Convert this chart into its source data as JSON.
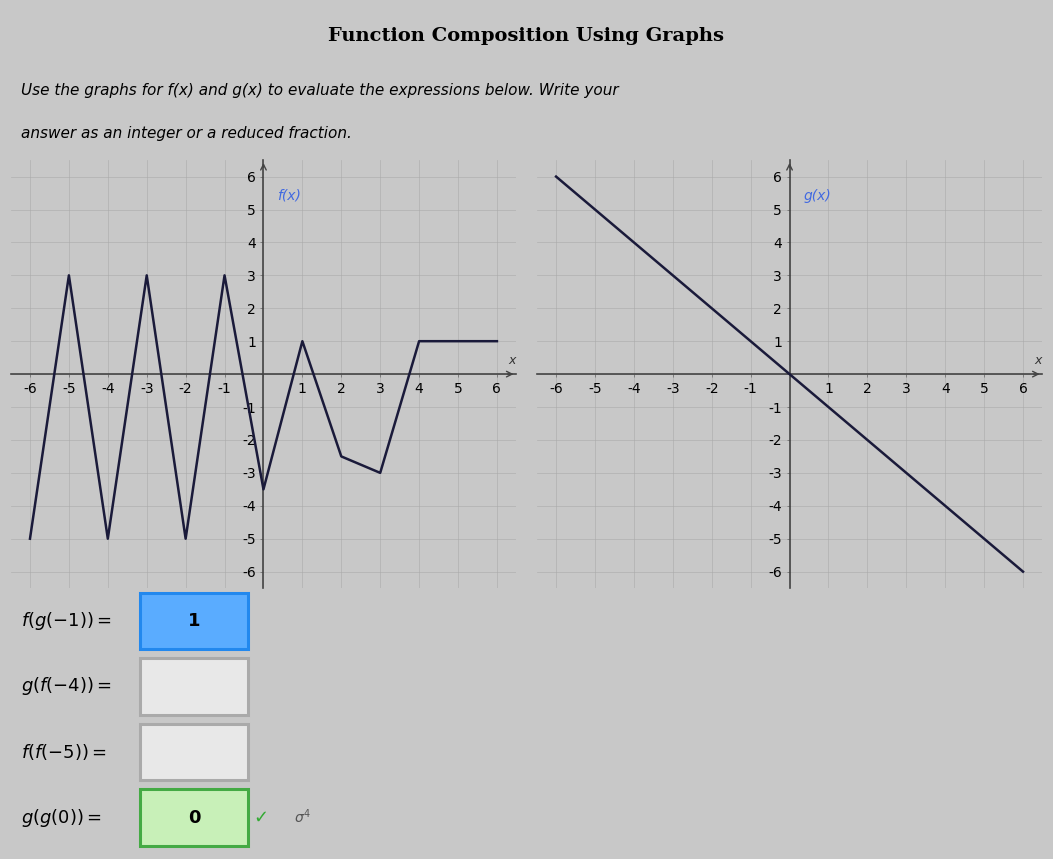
{
  "title": "Function Composition Using Graphs",
  "subtitle_line1": "Use the graphs for f(x) and g(x) to evaluate the expressions below. Write your",
  "subtitle_line2": "answer as an integer or a reduced fraction.",
  "f_x": [
    -6,
    -5,
    -4,
    -3,
    -2,
    -1,
    0,
    1,
    2,
    3,
    4,
    5,
    6
  ],
  "f_y": [
    -5,
    3,
    -5,
    3,
    -5,
    3,
    -3.5,
    1,
    -2.5,
    -3,
    1,
    1,
    1
  ],
  "g_x": [
    -6,
    -5,
    -4,
    -3,
    -2,
    -1,
    0,
    1,
    2,
    3,
    4,
    5,
    6
  ],
  "g_y": [
    6,
    5,
    4,
    3,
    2,
    1,
    0,
    -1,
    -2,
    -3,
    -4,
    -5,
    -6
  ],
  "f_label": "f(x)",
  "g_label": "g(x)",
  "xlim": [
    -6.5,
    6.5
  ],
  "ylim": [
    -6.5,
    6.5
  ],
  "expr_texts": [
    "f(g(-1)) =",
    "g(f(-4)) =",
    "f(f(-5)) =",
    "g(g(0)) ="
  ],
  "answer_vals": [
    "1",
    "",
    "",
    "0"
  ],
  "box_colors": [
    "#5aacff",
    "#e8e8e8",
    "#e8e8e8",
    "#c8f0b8"
  ],
  "box_edge_colors": [
    "#2288ee",
    "#aaaaaa",
    "#aaaaaa",
    "#44aa44"
  ],
  "bg_color": "#c8c8c8",
  "panel_bg": "#d4d4d4",
  "line_color": "#1a1a3a",
  "label_color": "#4169e1",
  "title_bg": "#d0d0d0",
  "graph_bg": "#c8c8c8"
}
